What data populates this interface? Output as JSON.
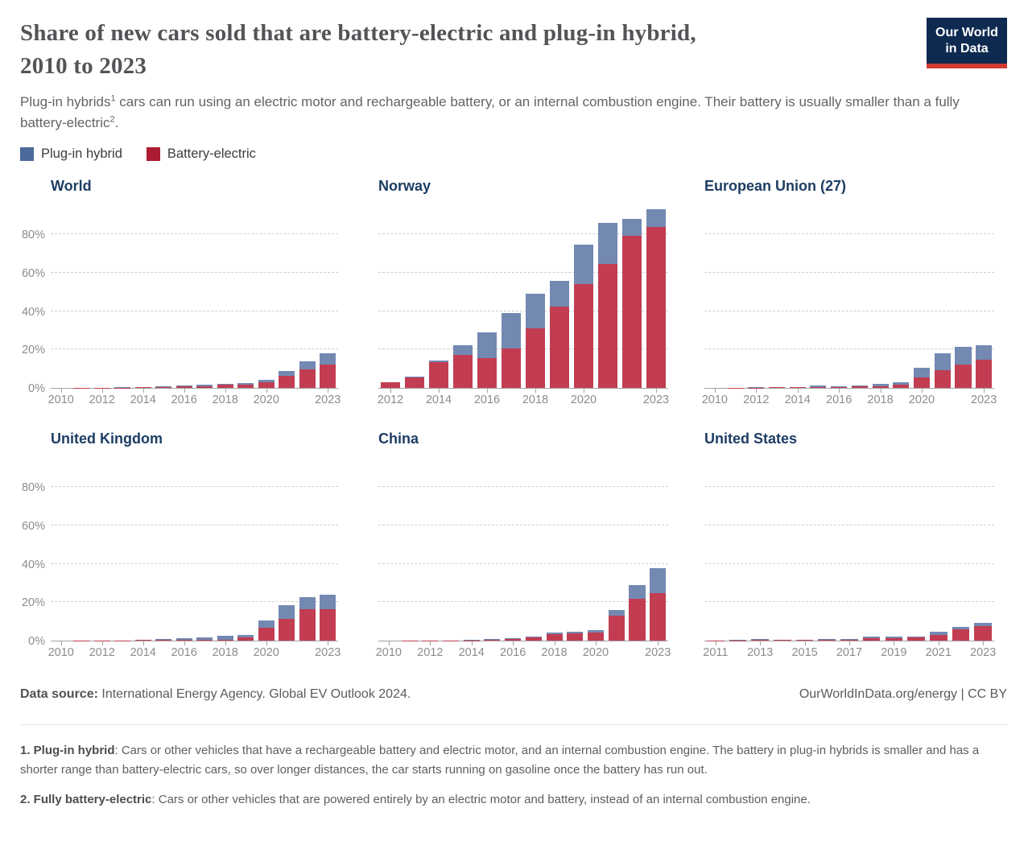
{
  "header": {
    "title_line1": "Share of new cars sold that are battery-electric and plug-in hybrid,",
    "title_line2": "2010 to 2023",
    "subtitle": {
      "t1": "Plug-in hybrids",
      "sup1": "1",
      "t2": " cars can run using an electric motor and rechargeable battery, or an internal combustion engine. Their battery is usually smaller than a fully battery-electric",
      "sup2": "2",
      "t3": "."
    },
    "logo": {
      "line1": "Our World",
      "line2": "in Data",
      "bg_color": "#0E2A50",
      "accent_color": "#D13B32",
      "text_color": "#FFFFFF"
    }
  },
  "legend": {
    "items": [
      {
        "id": "plug-in-hybrid",
        "label": "Plug-in hybrid",
        "color": "#4C6A9C"
      },
      {
        "id": "battery-electric",
        "label": "Battery-electric",
        "color": "#AC1C33"
      }
    ]
  },
  "chart_data": {
    "type": "bar",
    "stacked": true,
    "unit": "%",
    "ylim": [
      0,
      96
    ],
    "y_gridlines": [
      20,
      40,
      60,
      80
    ],
    "y_axis_tick_values": [
      0,
      20,
      40,
      60,
      80
    ],
    "y_axis_tick_labels": [
      "0%",
      "20%",
      "40%",
      "60%",
      "80%"
    ],
    "series_order_bottom_to_top": [
      "Battery-electric",
      "Plug-in hybrid"
    ],
    "bar_colors": {
      "Battery-electric": "#C23D52",
      "Plug-in hybrid": "#7389B2"
    },
    "grid_on": true,
    "legend_position": "top-left",
    "facets": [
      {
        "title": "World",
        "show_y_axis_labels": true,
        "years": [
          2010,
          2011,
          2012,
          2013,
          2014,
          2015,
          2016,
          2017,
          2018,
          2019,
          2020,
          2021,
          2022,
          2023
        ],
        "x_tick_years": [
          2010,
          2012,
          2014,
          2016,
          2018,
          2020,
          2023
        ],
        "values": {
          "Battery-electric": [
            0.01,
            0.05,
            0.15,
            0.25,
            0.35,
            0.55,
            0.75,
            1.0,
            1.6,
            1.8,
            2.9,
            6.3,
            9.9,
            12.4
          ],
          "Plug-in hybrid": [
            0.0,
            0.02,
            0.08,
            0.15,
            0.2,
            0.35,
            0.4,
            0.6,
            0.7,
            0.7,
            1.3,
            2.4,
            4.1,
            5.6
          ]
        }
      },
      {
        "title": "Norway",
        "show_y_axis_labels": false,
        "years": [
          2012,
          2013,
          2014,
          2015,
          2016,
          2017,
          2018,
          2019,
          2020,
          2021,
          2022,
          2023
        ],
        "x_tick_years": [
          2012,
          2014,
          2016,
          2018,
          2020,
          2023
        ],
        "values": {
          "Battery-electric": [
            3.0,
            5.5,
            13.7,
            17.1,
            15.7,
            20.8,
            31.2,
            42.4,
            54.3,
            64.5,
            79.2,
            84.0
          ],
          "Plug-in hybrid": [
            0.1,
            0.3,
            0.8,
            5.3,
            13.4,
            18.3,
            17.8,
            13.6,
            20.4,
            21.7,
            8.8,
            9.0
          ]
        }
      },
      {
        "title": "European Union (27)",
        "show_y_axis_labels": false,
        "years": [
          2010,
          2011,
          2012,
          2013,
          2014,
          2015,
          2016,
          2017,
          2018,
          2019,
          2020,
          2021,
          2022,
          2023
        ],
        "x_tick_years": [
          2010,
          2012,
          2014,
          2016,
          2018,
          2020,
          2023
        ],
        "values": {
          "Battery-electric": [
            0.02,
            0.06,
            0.2,
            0.3,
            0.35,
            0.6,
            0.6,
            0.75,
            1.0,
            1.9,
            5.4,
            9.1,
            12.1,
            14.6
          ],
          "Plug-in hybrid": [
            0.01,
            0.03,
            0.1,
            0.2,
            0.25,
            0.6,
            0.5,
            0.65,
            1.0,
            1.1,
            5.1,
            8.9,
            9.4,
            7.7
          ]
        }
      },
      {
        "title": "United Kingdom",
        "show_y_axis_labels": true,
        "years": [
          2010,
          2011,
          2012,
          2013,
          2014,
          2015,
          2016,
          2017,
          2018,
          2019,
          2020,
          2021,
          2022,
          2023
        ],
        "x_tick_years": [
          2010,
          2012,
          2014,
          2016,
          2018,
          2020,
          2023
        ],
        "values": {
          "Battery-electric": [
            0.01,
            0.06,
            0.1,
            0.15,
            0.4,
            0.4,
            0.5,
            0.5,
            0.7,
            1.6,
            6.6,
            11.6,
            16.6,
            16.5
          ],
          "Plug-in hybrid": [
            0.0,
            0.02,
            0.05,
            0.1,
            0.2,
            0.7,
            0.9,
            1.4,
            1.8,
            1.5,
            4.1,
            7.0,
            6.3,
            7.4
          ]
        }
      },
      {
        "title": "China",
        "show_y_axis_labels": false,
        "years": [
          2010,
          2011,
          2012,
          2013,
          2014,
          2015,
          2016,
          2017,
          2018,
          2019,
          2020,
          2021,
          2022,
          2023
        ],
        "x_tick_years": [
          2010,
          2012,
          2014,
          2016,
          2018,
          2020,
          2023
        ],
        "values": {
          "Battery-electric": [
            0.02,
            0.05,
            0.08,
            0.08,
            0.25,
            0.7,
            1.1,
            1.7,
            3.3,
            3.9,
            4.4,
            13.2,
            21.9,
            24.9
          ],
          "Plug-in hybrid": [
            0.0,
            0.01,
            0.02,
            0.02,
            0.15,
            0.3,
            0.3,
            0.4,
            0.9,
            0.8,
            1.0,
            2.8,
            7.1,
            13.1
          ]
        }
      },
      {
        "title": "United States",
        "show_y_axis_labels": false,
        "years": [
          2011,
          2012,
          2013,
          2014,
          2015,
          2016,
          2017,
          2018,
          2019,
          2020,
          2021,
          2022,
          2023
        ],
        "x_tick_years": [
          2011,
          2013,
          2015,
          2017,
          2019,
          2021,
          2023
        ],
        "values": {
          "Battery-electric": [
            0.1,
            0.1,
            0.4,
            0.4,
            0.4,
            0.5,
            0.6,
            1.3,
            1.5,
            1.7,
            3.2,
            5.9,
            7.6
          ],
          "Plug-in hybrid": [
            0.1,
            0.3,
            0.4,
            0.3,
            0.3,
            0.4,
            0.5,
            0.8,
            0.5,
            0.6,
            1.3,
            1.3,
            1.9
          ]
        }
      }
    ]
  },
  "footer": {
    "data_source_label": "Data source:",
    "data_source_text": " International Energy Agency. Global EV Outlook 2024.",
    "rights": "OurWorldInData.org/energy | CC BY"
  },
  "footnotes": {
    "note1_label": "1. Plug-in hybrid",
    "note1_text": ": Cars or other vehicles that have a rechargeable battery and electric motor, and an internal combustion engine. The battery in plug-in hybrids is smaller and has a shorter range than battery-electric cars, so over longer distances, the car starts running on gasoline once the battery has run out.",
    "note2_label": "2. Fully battery-electric",
    "note2_text": ": Cars or other vehicles that are powered entirely by an electric motor and battery, instead of an internal combustion engine."
  },
  "colors": {
    "axis": "#A3A3A3",
    "gridline": "#CFCFCF",
    "facet_title": "#1D3D63",
    "tick_label": "#8C8C8C"
  }
}
